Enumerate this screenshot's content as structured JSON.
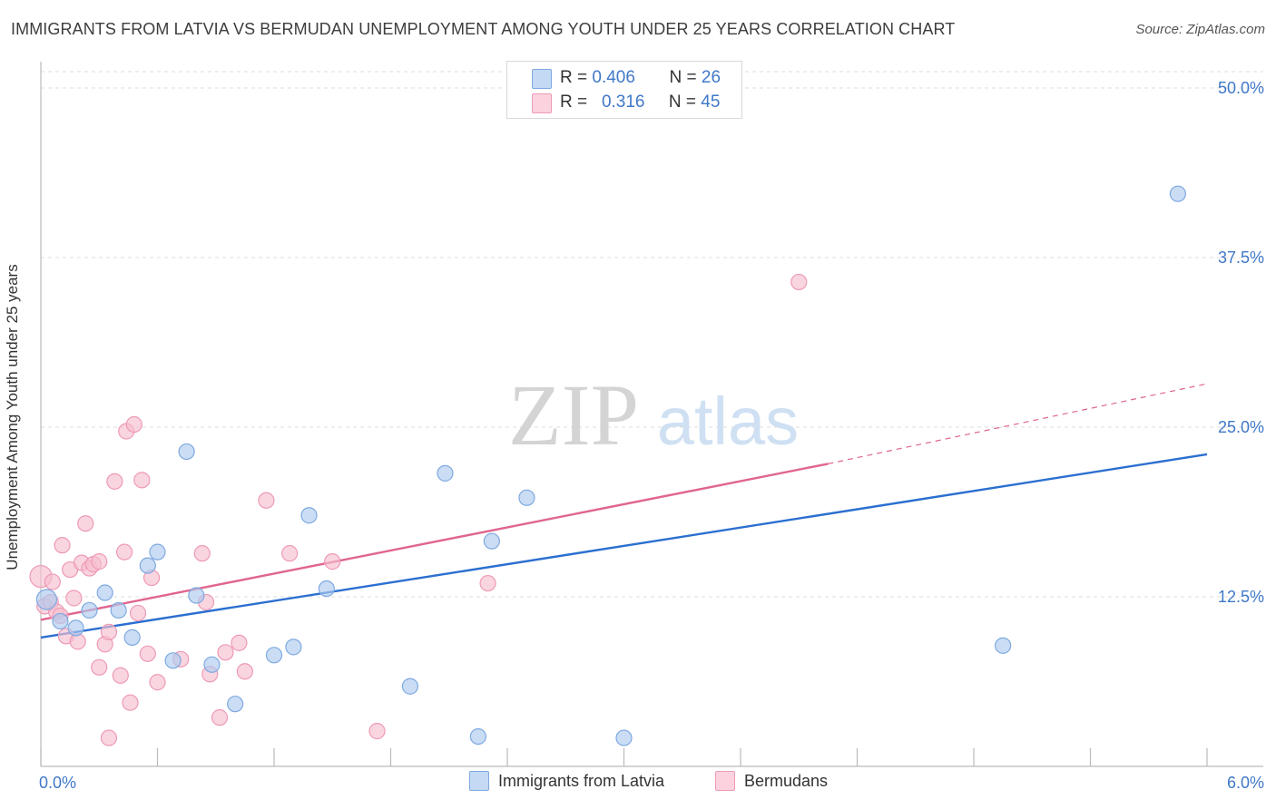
{
  "title": "IMMIGRANTS FROM LATVIA VS BERMUDAN UNEMPLOYMENT AMONG YOUTH UNDER 25 YEARS CORRELATION CHART",
  "source": "Source: ZipAtlas.com",
  "watermark": {
    "zip": "ZIP",
    "atlas": "atlas"
  },
  "legend": {
    "rows": [
      {
        "r_label": "R =",
        "r_value": "0.406",
        "n_label": "N =",
        "n_value": "26"
      },
      {
        "r_label": "R =",
        "r_value": "0.316",
        "n_label": "N =",
        "n_value": "45"
      }
    ]
  },
  "bottom_legend": {
    "series1": "Immigrants from Latvia",
    "series2": "Bermudans"
  },
  "colors": {
    "latvia_fill": "#aecbf0",
    "latvia_stroke": "#7ea9e0",
    "latvia_line": "#2b6fd0",
    "bermuda_fill": "#f6bfd0",
    "bermuda_stroke": "#ee9ab5",
    "bermuda_line": "#e0658f",
    "axis_label": "#3f78c8",
    "grid": "#dedede"
  },
  "chart_data": {
    "type": "scatter",
    "title": "IMMIGRANTS FROM LATVIA VS BERMUDAN UNEMPLOYMENT AMONG YOUTH UNDER 25 YEARS CORRELATION CHART",
    "xlabel": "",
    "ylabel": "Unemployment Among Youth under 25 years",
    "xlim": [
      0,
      6
    ],
    "ylim": [
      0,
      50
    ],
    "x_tick_labels": [
      "0.0%",
      "6.0%"
    ],
    "y_ticks": [
      12.5,
      25.0,
      37.5,
      50.0
    ],
    "y_tick_labels": [
      "12.5%",
      "25.0%",
      "37.5%",
      "50.0%"
    ],
    "grid": true,
    "legend_position": "top-center",
    "series": [
      {
        "name": "Immigrants from Latvia",
        "r": 0.406,
        "n": 26,
        "trend": {
          "x": [
            0.0,
            6.0
          ],
          "y": [
            9.5,
            23.0
          ],
          "dashed_extension": false
        },
        "points": [
          [
            0.03,
            12.3
          ],
          [
            0.1,
            10.7
          ],
          [
            0.18,
            10.2
          ],
          [
            0.25,
            11.5
          ],
          [
            0.33,
            12.8
          ],
          [
            0.4,
            11.5
          ],
          [
            0.47,
            9.5
          ],
          [
            0.55,
            14.8
          ],
          [
            0.6,
            15.8
          ],
          [
            0.68,
            7.8
          ],
          [
            0.75,
            23.2
          ],
          [
            0.8,
            12.6
          ],
          [
            0.88,
            7.5
          ],
          [
            1.0,
            4.6
          ],
          [
            1.2,
            8.2
          ],
          [
            1.3,
            8.8
          ],
          [
            1.38,
            18.5
          ],
          [
            1.47,
            13.1
          ],
          [
            1.9,
            5.9
          ],
          [
            2.08,
            21.6
          ],
          [
            2.25,
            2.2
          ],
          [
            2.32,
            16.6
          ],
          [
            2.5,
            19.8
          ],
          [
            3.0,
            2.1
          ],
          [
            4.95,
            8.9
          ],
          [
            5.85,
            42.2
          ]
        ]
      },
      {
        "name": "Bermudans",
        "r": 0.316,
        "n": 45,
        "trend": {
          "x": [
            0.0,
            4.05
          ],
          "y": [
            10.8,
            22.3
          ],
          "extension_x": [
            4.05,
            6.0
          ],
          "extension_y": [
            22.3,
            28.2
          ]
        },
        "points": [
          [
            0.0,
            14.0
          ],
          [
            0.02,
            11.8
          ],
          [
            0.05,
            12.1
          ],
          [
            0.08,
            11.4
          ],
          [
            0.1,
            11.1
          ],
          [
            0.11,
            16.3
          ],
          [
            0.13,
            9.6
          ],
          [
            0.15,
            14.5
          ],
          [
            0.17,
            12.4
          ],
          [
            0.19,
            9.2
          ],
          [
            0.21,
            15.0
          ],
          [
            0.23,
            17.9
          ],
          [
            0.25,
            14.6
          ],
          [
            0.27,
            14.9
          ],
          [
            0.3,
            7.3
          ],
          [
            0.3,
            15.1
          ],
          [
            0.33,
            9.0
          ],
          [
            0.35,
            9.9
          ],
          [
            0.35,
            2.1
          ],
          [
            0.38,
            21.0
          ],
          [
            0.41,
            6.7
          ],
          [
            0.43,
            15.8
          ],
          [
            0.44,
            24.7
          ],
          [
            0.46,
            4.7
          ],
          [
            0.48,
            25.2
          ],
          [
            0.5,
            11.3
          ],
          [
            0.52,
            21.1
          ],
          [
            0.55,
            8.3
          ],
          [
            0.57,
            13.9
          ],
          [
            0.6,
            6.2
          ],
          [
            0.72,
            7.9
          ],
          [
            0.83,
            15.7
          ],
          [
            0.85,
            12.1
          ],
          [
            0.87,
            6.8
          ],
          [
            0.92,
            3.6
          ],
          [
            0.95,
            8.4
          ],
          [
            1.02,
            9.1
          ],
          [
            1.05,
            7.0
          ],
          [
            1.16,
            19.6
          ],
          [
            1.28,
            15.7
          ],
          [
            1.5,
            15.1
          ],
          [
            1.73,
            2.6
          ],
          [
            2.3,
            13.5
          ],
          [
            3.9,
            35.7
          ],
          [
            0.06,
            13.6
          ]
        ]
      }
    ]
  }
}
